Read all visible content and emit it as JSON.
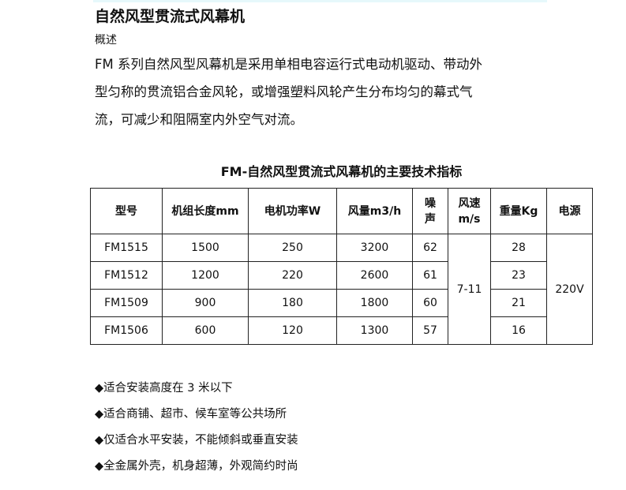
{
  "title": "自然风型贯流式风幕机",
  "subtitle": "概述",
  "description_lines": [
    "FM 系列自然风型风幕机是采用单相电容运行式电动机驱动、带动外",
    "型匀称的贯流铝合金风轮，或增强塑料风轮产生分布均匀的幕式气",
    "流，可减少和阻隔室内外空气对流。"
  ],
  "table": {
    "caption": "FM-自然风型贯流式风幕机的主要技术指标",
    "headers": [
      "型号",
      "机组长度mm",
      "电机功率W",
      "风量m3/h",
      "噪声",
      "风速m/s",
      "重量Kg",
      "电源"
    ],
    "header_lines": {
      "noise": [
        "噪",
        "声"
      ],
      "speed": [
        "风速",
        "m/s"
      ]
    },
    "rows": [
      {
        "model": "FM1515",
        "length": "1500",
        "power": "250",
        "airflow": "3200",
        "noise": "62",
        "weight": "28"
      },
      {
        "model": "FM1512",
        "length": "1200",
        "power": "220",
        "airflow": "2600",
        "noise": "61",
        "weight": "23"
      },
      {
        "model": "FM1509",
        "length": "900",
        "power": "180",
        "airflow": "1800",
        "noise": "60",
        "weight": "21"
      },
      {
        "model": "FM1506",
        "length": "600",
        "power": "120",
        "airflow": "1300",
        "noise": "57",
        "weight": "16"
      }
    ],
    "shared_speed": "7-11",
    "shared_power_supply": "220V"
  },
  "features": [
    "◆适合安装高度在 3 米以下",
    "◆适合商铺、超市、候车室等公共场所",
    "◆仅适合水平安装，不能倾斜或垂直安装",
    "◆全金属外壳，机身超薄，外观简约时尚"
  ]
}
